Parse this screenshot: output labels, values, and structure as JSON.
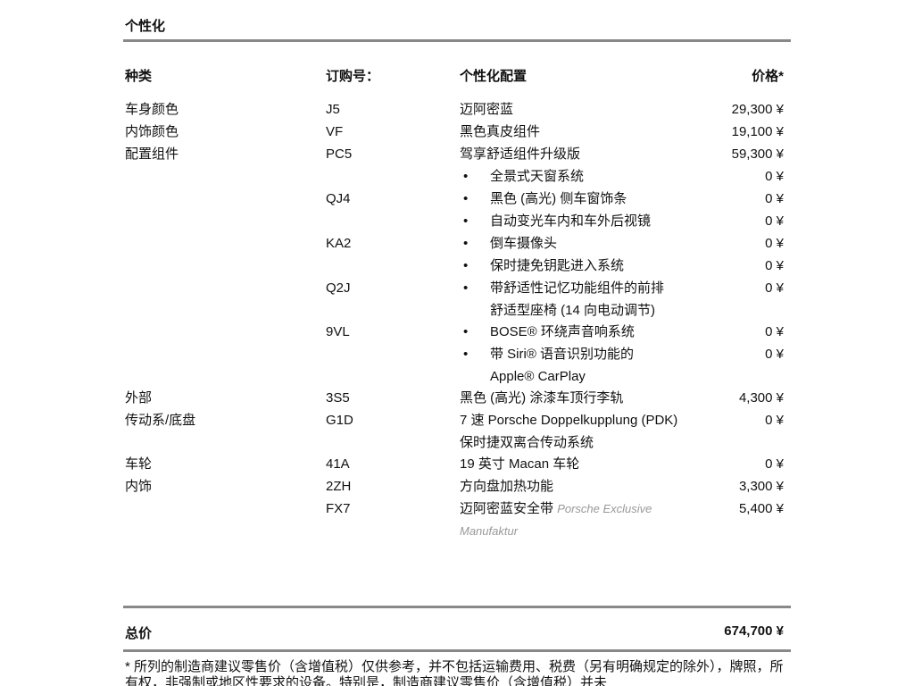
{
  "section_title": "个性化",
  "headers": {
    "category": "种类",
    "code": "订购号：",
    "config": "个性化配置",
    "price": "价格*"
  },
  "rows": [
    {
      "category": "车身颜色",
      "code": "J5",
      "config": "迈阿密蓝",
      "price": "29,300 ¥"
    },
    {
      "category": "内饰颜色",
      "code": "VF",
      "config": "黑色真皮组件",
      "price": "19,100 ¥"
    },
    {
      "category": "配置组件",
      "code": "PC5",
      "config": "驾享舒适组件升级版",
      "price": "59,300 ¥"
    },
    {
      "category": "",
      "code": "",
      "config": "全景式天窗系统",
      "bullet": true,
      "price": "0 ¥"
    },
    {
      "category": "",
      "code": "QJ4",
      "config": "黑色 (高光) 侧车窗饰条",
      "bullet": true,
      "price": "0 ¥"
    },
    {
      "category": "",
      "code": "",
      "config": "自动变光车内和车外后视镜",
      "bullet": true,
      "price": "0 ¥"
    },
    {
      "category": "",
      "code": "KA2",
      "config": "倒车摄像头",
      "bullet": true,
      "price": "0 ¥"
    },
    {
      "category": "",
      "code": "",
      "config": "保时捷免钥匙进入系统",
      "bullet": true,
      "price": "0 ¥"
    },
    {
      "category": "",
      "code": "Q2J",
      "config": "带舒适性记忆功能组件的前排舒适型座椅 (14 向电动调节)",
      "bullet": true,
      "price": "0 ¥"
    },
    {
      "category": "",
      "code": "9VL",
      "config": "BOSE® 环绕声音响系统",
      "bullet": true,
      "price": "0 ¥"
    },
    {
      "category": "",
      "code": "",
      "config": "带 Siri® 语音识别功能的 Apple® CarPlay",
      "bullet": true,
      "price": "0 ¥"
    },
    {
      "category": "外部",
      "code": "3S5",
      "config": "黑色 (高光) 涂漆车顶行李轨",
      "price": "4,300 ¥"
    },
    {
      "category": "传动系/底盘",
      "code": "G1D",
      "config": "7 速 Porsche Doppelkupplung (PDK) 保时捷双离合传动系统",
      "price": "0 ¥"
    },
    {
      "category": "车轮",
      "code": "41A",
      "config": "19 英寸 Macan 车轮",
      "price": "0 ¥"
    },
    {
      "category": "内饰",
      "code": "2ZH",
      "config": "方向盘加热功能",
      "price": "3,300 ¥"
    },
    {
      "category": "",
      "code": "FX7",
      "config": "迈阿密蓝安全带",
      "note": "Porsche Exclusive Manufaktur",
      "price": "5,400 ¥"
    }
  ],
  "total": {
    "label": "总价",
    "value": "674,700 ¥"
  },
  "footnote": "* 所列的制造商建议零售价（含增值税）仅供参考，并不包括运输费用、税费（另有明确规定的除外），牌照，所有权，非强制或地区性要求的设备。特别是，制造商建议零售价（含增值税）并未"
}
